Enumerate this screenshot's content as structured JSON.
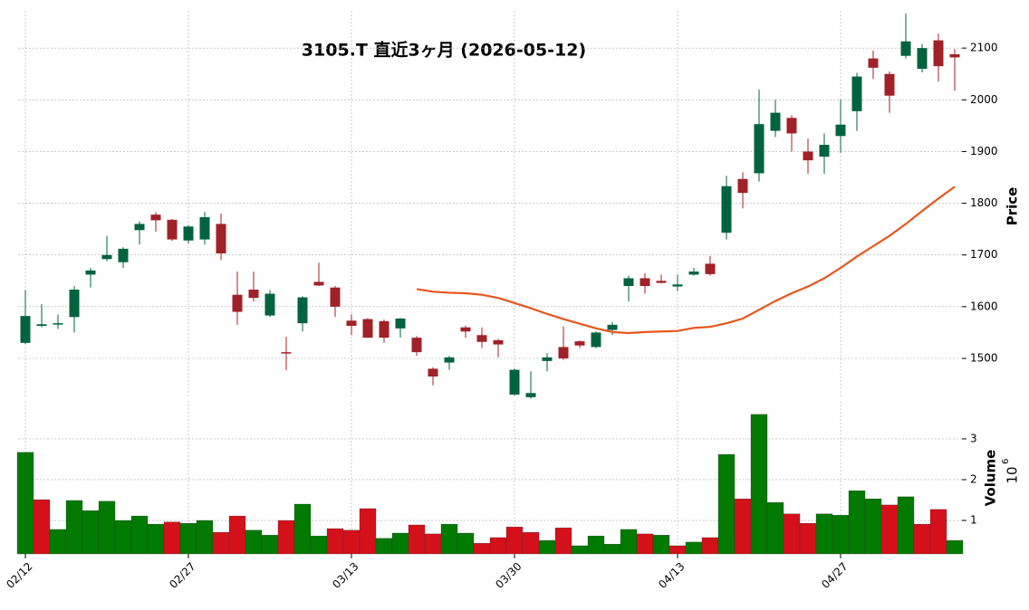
{
  "chart_data": {
    "type": "candlestick",
    "title": "3105.T 直近3ヶ月 (2026-05-12)",
    "ylabel": "Price",
    "volume_label": "Volume",
    "volume_scale": {
      "base": "10",
      "exponent": "6"
    },
    "categories": [
      "02/12",
      null,
      null,
      null,
      null,
      null,
      null,
      null,
      null,
      null,
      "02/27",
      null,
      null,
      null,
      null,
      null,
      null,
      null,
      null,
      null,
      "03/13",
      null,
      null,
      null,
      null,
      null,
      null,
      null,
      null,
      null,
      "03/30",
      null,
      null,
      null,
      null,
      null,
      null,
      null,
      null,
      null,
      "04/13",
      null,
      null,
      null,
      null,
      null,
      null,
      null,
      null,
      null,
      "04/27",
      null,
      null,
      null,
      null,
      null,
      null,
      null
    ],
    "open": [
      1530,
      1563,
      1566,
      1580,
      1662,
      1692,
      1686,
      1748,
      1778,
      1768,
      1728,
      1730,
      1760,
      1623,
      1633,
      1583,
      1512,
      1568,
      1648,
      1637,
      1573,
      1576,
      1572,
      1558,
      1540,
      1480,
      1492,
      1560,
      1545,
      1535,
      1430,
      1425,
      1495,
      1522,
      1533,
      1522,
      1555,
      1640,
      1655,
      1650,
      1639,
      1662,
      1683,
      1743,
      1847,
      1858,
      1940,
      1965,
      1900,
      1890,
      1930,
      1978,
      2080,
      2050,
      2085,
      2060,
      2115,
      2088
    ],
    "high": [
      1632,
      1605,
      1585,
      1640,
      1675,
      1737,
      1715,
      1765,
      1783,
      1770,
      1758,
      1783,
      1780,
      1668,
      1668,
      1632,
      1542,
      1620,
      1685,
      1640,
      1585,
      1578,
      1575,
      1578,
      1543,
      1483,
      1505,
      1563,
      1560,
      1538,
      1480,
      1475,
      1510,
      1562,
      1535,
      1552,
      1570,
      1660,
      1665,
      1662,
      1662,
      1675,
      1698,
      1853,
      1860,
      2020,
      2000,
      1970,
      1925,
      1935,
      2000,
      2052,
      2095,
      2055,
      2167,
      2108,
      2128,
      2098
    ],
    "low": [
      1528,
      1560,
      1557,
      1550,
      1637,
      1688,
      1675,
      1720,
      1745,
      1727,
      1722,
      1720,
      1690,
      1565,
      1610,
      1580,
      1477,
      1552,
      1640,
      1580,
      1545,
      1540,
      1530,
      1540,
      1505,
      1448,
      1478,
      1540,
      1520,
      1502,
      1428,
      1422,
      1475,
      1497,
      1520,
      1520,
      1545,
      1610,
      1625,
      1645,
      1630,
      1660,
      1660,
      1730,
      1790,
      1842,
      1928,
      1900,
      1857,
      1857,
      1898,
      1940,
      2040,
      1975,
      2080,
      2053,
      2035,
      2018
    ],
    "close": [
      1582,
      1566,
      1568,
      1633,
      1670,
      1700,
      1712,
      1760,
      1767,
      1730,
      1755,
      1773,
      1703,
      1590,
      1617,
      1625,
      1510,
      1618,
      1641,
      1600,
      1563,
      1540,
      1540,
      1577,
      1512,
      1465,
      1502,
      1552,
      1532,
      1527,
      1478,
      1433,
      1502,
      1500,
      1525,
      1550,
      1565,
      1655,
      1640,
      1646,
      1643,
      1668,
      1663,
      1833,
      1820,
      1953,
      1975,
      1935,
      1883,
      1913,
      1952,
      2045,
      2062,
      2008,
      2113,
      2100,
      2065,
      2082
    ],
    "ma": [
      null,
      null,
      null,
      null,
      null,
      null,
      null,
      null,
      null,
      null,
      null,
      null,
      null,
      null,
      null,
      null,
      null,
      null,
      null,
      null,
      null,
      null,
      null,
      null,
      1634,
      1629,
      1627,
      1626,
      1623,
      1617,
      1607,
      1597,
      1586,
      1576,
      1567,
      1558,
      1551,
      1549,
      1551,
      1552,
      1553,
      1559,
      1561,
      1568,
      1577,
      1594,
      1611,
      1626,
      1639,
      1655,
      1675,
      1697,
      1717,
      1737,
      1760,
      1785,
      1809,
      1832
    ],
    "ma_color": "#e8561c",
    "volume": [
      2.67,
      1.51,
      0.78,
      1.49,
      1.24,
      1.47,
      1.0,
      1.11,
      0.91,
      0.96,
      0.93,
      1.0,
      0.71,
      1.11,
      0.76,
      0.64,
      1.0,
      1.4,
      0.62,
      0.8,
      0.76,
      1.29,
      0.56,
      0.69,
      0.89,
      0.67,
      0.91,
      0.69,
      0.44,
      0.58,
      0.84,
      0.71,
      0.51,
      0.82,
      0.38,
      0.62,
      0.42,
      0.78,
      0.67,
      0.64,
      0.38,
      0.47,
      0.58,
      2.62,
      1.53,
      3.6,
      1.44,
      1.16,
      0.93,
      1.16,
      1.13,
      1.73,
      1.53,
      1.38,
      1.58,
      0.91,
      1.27,
      0.51
    ],
    "up_color": "#006340",
    "down_color": "#a02128",
    "volume_up_color": "#007a00",
    "volume_down_color": "#d4101a",
    "ylim": [
      1423,
      2172
    ],
    "yticks": [
      1500,
      1600,
      1700,
      1800,
      1900,
      2000,
      2100
    ],
    "volume_ylim": [
      0.18,
      3.93
    ],
    "volume_yticks": [
      1,
      2,
      3
    ],
    "grid": true
  }
}
